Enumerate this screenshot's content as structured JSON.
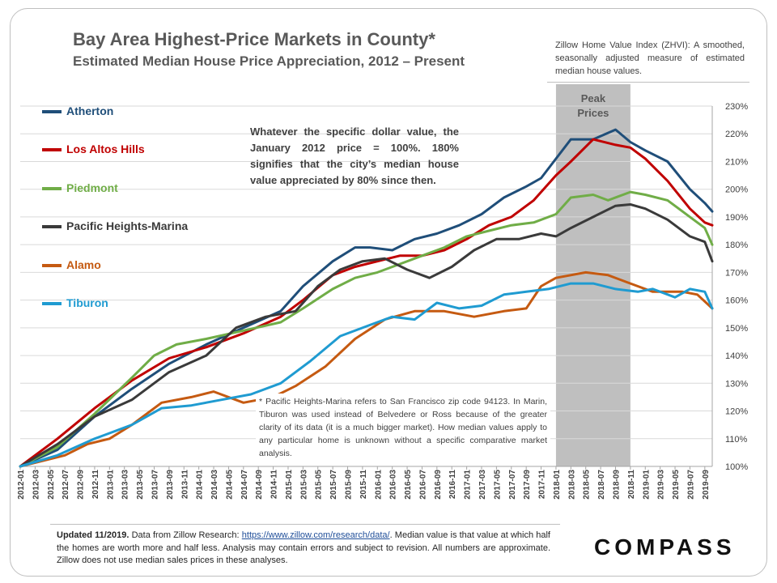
{
  "header": {
    "title": "Bay Area Highest-Price Markets in County*",
    "subtitle": "Estimated Median House Price Appreciation, 2012 – Present",
    "definition": "Zillow Home Value Index (ZHVI): A smoothed, seasonally adjusted measure of estimated median house values."
  },
  "annotations": {
    "baseline_note": "Whatever the specific dollar value, the January 2012 price = 100%. 180% signifies that the city’s median house value appreciated by 80% since then.",
    "footnote": "* Pacific Heights-Marina refers to San Francisco zip code 94123. In Marin, Tiburon was used instead of Belvedere or Ross because of the greater clarity of its data (it is a much bigger market). How median values apply to any particular home is unknown without a specific comparative market analysis.",
    "peak_label_line1": "Peak",
    "peak_label_line2": "Prices"
  },
  "footer": {
    "updated": "Updated 11/2019.",
    "source_prefix": "Data from Zillow Research:",
    "link": "https://www.zillow.com/research/data/",
    "rest": ". Median value is that value at which half the homes are worth more and half less. Analysis may contain errors and subject to revision. All numbers are approximate. Zillow does not use median sales prices in these analyses."
  },
  "brand": {
    "name": "COMPASS"
  },
  "colors": {
    "grid": "#d9d9d9",
    "peak_band": "#bfbfbf",
    "axis_text": "#404040",
    "title": "#595959"
  },
  "chart_data": {
    "type": "line",
    "x": [
      "2012-01",
      "2012-03",
      "2012-05",
      "2012-07",
      "2012-09",
      "2012-11",
      "2013-01",
      "2013-03",
      "2013-05",
      "2013-07",
      "2013-09",
      "2013-11",
      "2014-01",
      "2014-03",
      "2014-05",
      "2014-07",
      "2014-09",
      "2014-11",
      "2015-01",
      "2015-03",
      "2015-05",
      "2015-07",
      "2015-09",
      "2015-11",
      "2016-01",
      "2016-03",
      "2016-05",
      "2016-07",
      "2016-09",
      "2016-11",
      "2017-01",
      "2017-03",
      "2017-05",
      "2017-07",
      "2017-09",
      "2017-11",
      "2018-01",
      "2018-03",
      "2018-05",
      "2018-07",
      "2018-09",
      "2018-11",
      "2019-01",
      "2019-03",
      "2019-05",
      "2019-07",
      "2019-09"
    ],
    "x_end": "2019-10",
    "ylim": [
      100,
      230
    ],
    "yticks": [
      100,
      110,
      120,
      130,
      140,
      150,
      160,
      170,
      180,
      190,
      200,
      210,
      220,
      230
    ],
    "y_unit": "%",
    "grid": true,
    "legend_position": "left",
    "peak_band": {
      "start": "2018-01",
      "end": "2018-11"
    },
    "series": [
      {
        "name": "Atherton",
        "color": "#1f4e79",
        "points": [
          [
            "2012-01",
            100
          ],
          [
            "2012-06",
            106
          ],
          [
            "2012-11",
            118
          ],
          [
            "2013-04",
            128
          ],
          [
            "2013-09",
            137
          ],
          [
            "2014-02",
            144
          ],
          [
            "2014-07",
            150
          ],
          [
            "2014-12",
            156
          ],
          [
            "2015-03",
            165
          ],
          [
            "2015-07",
            174
          ],
          [
            "2015-10",
            179
          ],
          [
            "2015-12",
            179
          ],
          [
            "2016-03",
            178
          ],
          [
            "2016-06",
            182
          ],
          [
            "2016-09",
            184
          ],
          [
            "2016-12",
            187
          ],
          [
            "2017-03",
            191
          ],
          [
            "2017-06",
            197
          ],
          [
            "2017-09",
            201
          ],
          [
            "2017-11",
            204
          ],
          [
            "2018-01",
            211
          ],
          [
            "2018-03",
            218
          ],
          [
            "2018-06",
            218
          ],
          [
            "2018-09",
            221.5
          ],
          [
            "2018-11",
            217
          ],
          [
            "2019-01",
            214
          ],
          [
            "2019-04",
            210
          ],
          [
            "2019-07",
            200
          ],
          [
            "2019-09",
            195
          ],
          [
            "2019-10",
            192
          ]
        ]
      },
      {
        "name": "Los Altos Hills",
        "color": "#c00000",
        "points": [
          [
            "2012-01",
            100
          ],
          [
            "2012-06",
            110
          ],
          [
            "2012-11",
            121
          ],
          [
            "2013-04",
            131
          ],
          [
            "2013-09",
            139
          ],
          [
            "2014-02",
            143
          ],
          [
            "2014-07",
            148
          ],
          [
            "2014-12",
            154
          ],
          [
            "2015-03",
            160
          ],
          [
            "2015-07",
            169
          ],
          [
            "2015-10",
            172
          ],
          [
            "2016-01",
            174
          ],
          [
            "2016-04",
            176
          ],
          [
            "2016-07",
            176
          ],
          [
            "2016-10",
            178
          ],
          [
            "2017-01",
            182
          ],
          [
            "2017-04",
            187
          ],
          [
            "2017-07",
            190
          ],
          [
            "2017-10",
            196
          ],
          [
            "2018-01",
            205
          ],
          [
            "2018-03",
            210
          ],
          [
            "2018-06",
            218
          ],
          [
            "2018-09",
            216
          ],
          [
            "2018-11",
            215
          ],
          [
            "2019-01",
            211
          ],
          [
            "2019-04",
            203
          ],
          [
            "2019-07",
            193
          ],
          [
            "2019-09",
            188
          ],
          [
            "2019-10",
            187
          ]
        ]
      },
      {
        "name": "Piedmont",
        "color": "#70ad47",
        "points": [
          [
            "2012-01",
            100
          ],
          [
            "2012-06",
            107
          ],
          [
            "2012-11",
            119
          ],
          [
            "2013-04",
            132
          ],
          [
            "2013-07",
            140
          ],
          [
            "2013-10",
            144
          ],
          [
            "2014-02",
            146
          ],
          [
            "2014-07",
            149
          ],
          [
            "2014-12",
            152
          ],
          [
            "2015-03",
            157
          ],
          [
            "2015-07",
            164
          ],
          [
            "2015-10",
            168
          ],
          [
            "2016-01",
            170
          ],
          [
            "2016-04",
            173
          ],
          [
            "2016-07",
            176
          ],
          [
            "2016-10",
            179
          ],
          [
            "2017-01",
            183
          ],
          [
            "2017-04",
            185
          ],
          [
            "2017-07",
            187
          ],
          [
            "2017-10",
            188
          ],
          [
            "2018-01",
            191
          ],
          [
            "2018-03",
            197
          ],
          [
            "2018-06",
            198
          ],
          [
            "2018-08",
            196
          ],
          [
            "2018-11",
            199
          ],
          [
            "2019-01",
            198
          ],
          [
            "2019-04",
            196
          ],
          [
            "2019-07",
            190
          ],
          [
            "2019-09",
            186
          ],
          [
            "2019-10",
            180
          ]
        ]
      },
      {
        "name": "Pacific Heights-Marina",
        "color": "#3a3a3a",
        "points": [
          [
            "2012-01",
            100
          ],
          [
            "2012-06",
            108
          ],
          [
            "2012-11",
            118
          ],
          [
            "2013-04",
            124
          ],
          [
            "2013-09",
            134
          ],
          [
            "2014-02",
            140
          ],
          [
            "2014-06",
            150
          ],
          [
            "2014-10",
            154
          ],
          [
            "2015-02",
            156
          ],
          [
            "2015-05",
            165
          ],
          [
            "2015-08",
            171
          ],
          [
            "2015-11",
            174
          ],
          [
            "2016-02",
            175
          ],
          [
            "2016-05",
            171
          ],
          [
            "2016-08",
            168
          ],
          [
            "2016-11",
            172
          ],
          [
            "2017-02",
            178
          ],
          [
            "2017-05",
            182
          ],
          [
            "2017-08",
            182
          ],
          [
            "2017-11",
            184
          ],
          [
            "2018-01",
            183
          ],
          [
            "2018-03",
            186
          ],
          [
            "2018-06",
            190
          ],
          [
            "2018-09",
            194
          ],
          [
            "2018-11",
            194.5
          ],
          [
            "2019-01",
            193
          ],
          [
            "2019-04",
            189
          ],
          [
            "2019-07",
            183
          ],
          [
            "2019-09",
            181
          ],
          [
            "2019-10",
            174
          ]
        ]
      },
      {
        "name": "Alamo",
        "color": "#c55a11",
        "points": [
          [
            "2012-01",
            100
          ],
          [
            "2012-04",
            102
          ],
          [
            "2012-07",
            104
          ],
          [
            "2012-10",
            108
          ],
          [
            "2013-01",
            110
          ],
          [
            "2013-04",
            115
          ],
          [
            "2013-08",
            123
          ],
          [
            "2013-12",
            125
          ],
          [
            "2014-03",
            127
          ],
          [
            "2014-07",
            123
          ],
          [
            "2014-11",
            125
          ],
          [
            "2015-02",
            129
          ],
          [
            "2015-06",
            136
          ],
          [
            "2015-10",
            146
          ],
          [
            "2016-02",
            153
          ],
          [
            "2016-06",
            156
          ],
          [
            "2016-10",
            156
          ],
          [
            "2017-02",
            154
          ],
          [
            "2017-06",
            156
          ],
          [
            "2017-09",
            157
          ],
          [
            "2017-11",
            165
          ],
          [
            "2018-01",
            168
          ],
          [
            "2018-05",
            170
          ],
          [
            "2018-08",
            169
          ],
          [
            "2018-11",
            166
          ],
          [
            "2019-02",
            163
          ],
          [
            "2019-06",
            163
          ],
          [
            "2019-08",
            162
          ],
          [
            "2019-10",
            157
          ]
        ]
      },
      {
        "name": "Tiburon",
        "color": "#1f9bd1",
        "points": [
          [
            "2012-01",
            100
          ],
          [
            "2012-06",
            104
          ],
          [
            "2012-11",
            110
          ],
          [
            "2013-04",
            115
          ],
          [
            "2013-08",
            121
          ],
          [
            "2013-12",
            122
          ],
          [
            "2014-04",
            124
          ],
          [
            "2014-08",
            126
          ],
          [
            "2014-12",
            130
          ],
          [
            "2015-04",
            138
          ],
          [
            "2015-08",
            147
          ],
          [
            "2015-12",
            151
          ],
          [
            "2016-03",
            154
          ],
          [
            "2016-06",
            153
          ],
          [
            "2016-09",
            159
          ],
          [
            "2016-12",
            157
          ],
          [
            "2017-03",
            158
          ],
          [
            "2017-06",
            162
          ],
          [
            "2017-09",
            163
          ],
          [
            "2017-12",
            164
          ],
          [
            "2018-03",
            166
          ],
          [
            "2018-06",
            166
          ],
          [
            "2018-09",
            164
          ],
          [
            "2018-12",
            163
          ],
          [
            "2019-02",
            164
          ],
          [
            "2019-05",
            161
          ],
          [
            "2019-07",
            164
          ],
          [
            "2019-09",
            163
          ],
          [
            "2019-10",
            157
          ]
        ]
      }
    ]
  }
}
